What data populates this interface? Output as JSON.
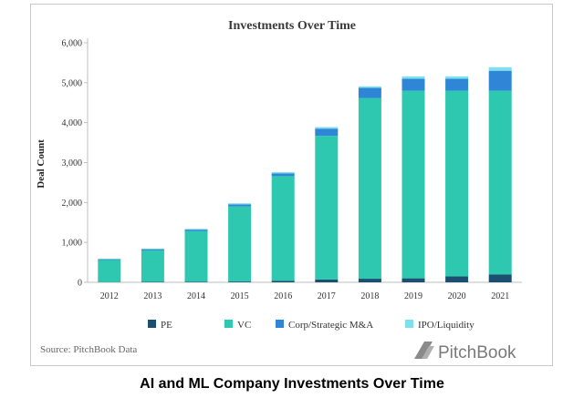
{
  "caption": "AI and ML Company Investments Over Time",
  "source": "Source: PitchBook Data",
  "brand": "PitchBook",
  "chart_data": {
    "type": "bar",
    "stacked": true,
    "title": "Investments Over Time",
    "xlabel": "",
    "ylabel": "Deal Count",
    "ylim": [
      0,
      6000
    ],
    "yticks": [
      0,
      1000,
      2000,
      3000,
      4000,
      5000,
      6000
    ],
    "ytick_labels": [
      "0",
      "1,000",
      "2,000",
      "3,000",
      "4,000",
      "5,000",
      "6,000"
    ],
    "grid": false,
    "legend": "bottom",
    "categories": [
      "2012",
      "2013",
      "2014",
      "2015",
      "2016",
      "2017",
      "2018",
      "2019",
      "2020",
      "2021"
    ],
    "series": [
      {
        "name": "PE",
        "color": "#1b4f72",
        "values": [
          5,
          10,
          15,
          20,
          40,
          70,
          90,
          100,
          150,
          200
        ]
      },
      {
        "name": "VC",
        "color": "#2ec8b0",
        "values": [
          555,
          790,
          1265,
          1880,
          2620,
          3600,
          4530,
          4700,
          4650,
          4600
        ]
      },
      {
        "name": "Corp/Strategic M&A",
        "color": "#2f86d6",
        "values": [
          20,
          30,
          40,
          50,
          70,
          180,
          250,
          300,
          300,
          500
        ]
      },
      {
        "name": "IPO/Liquidity",
        "color": "#7ee0ec",
        "values": [
          10,
          15,
          20,
          30,
          30,
          40,
          40,
          60,
          60,
          90
        ]
      }
    ]
  }
}
